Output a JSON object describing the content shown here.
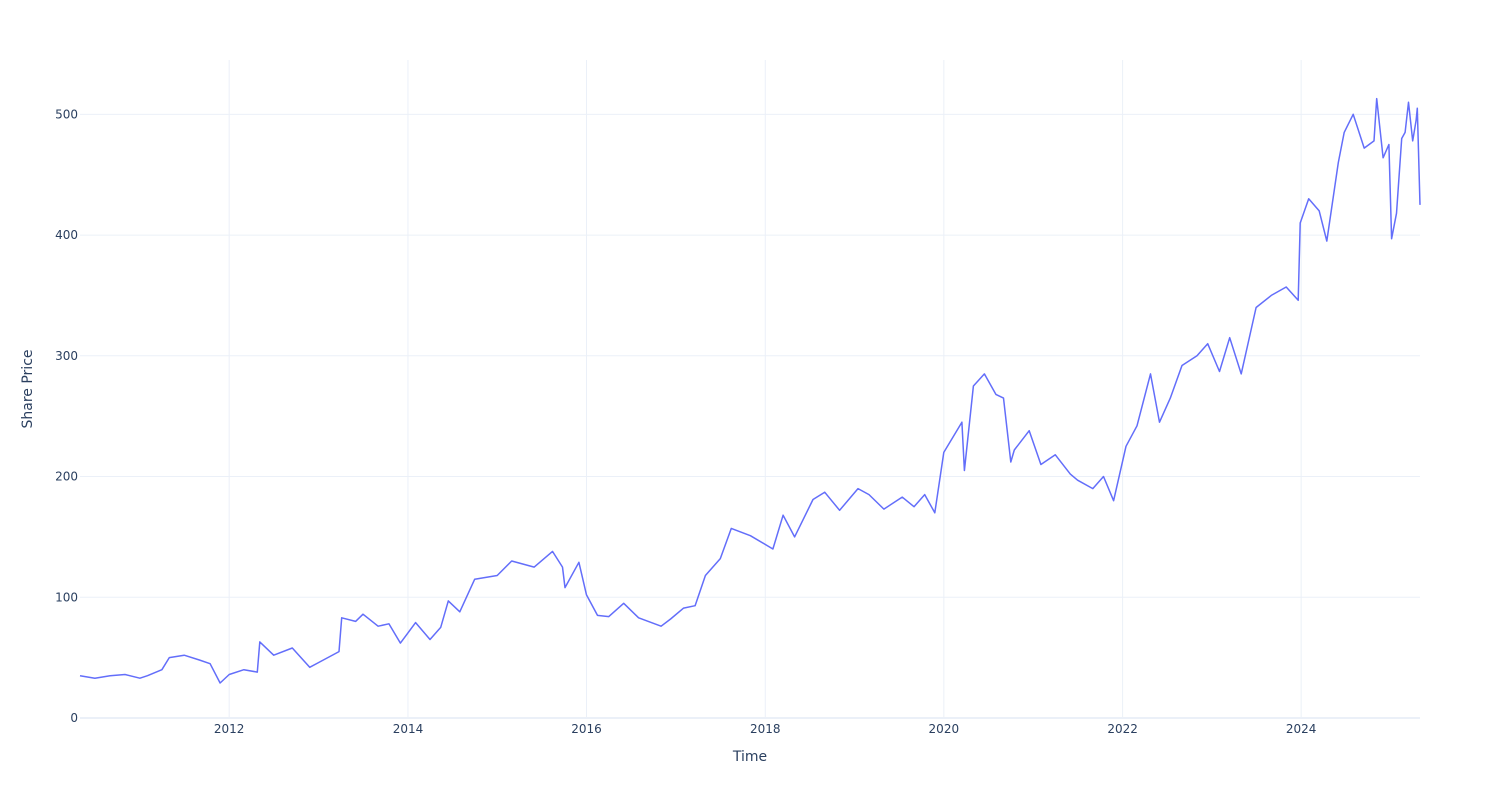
{
  "colors": {
    "line": "#636efa",
    "grid": "#ebf0f8",
    "text": "#2a3f5f",
    "background": "#ffffff"
  },
  "chart_data": {
    "type": "line",
    "title": "",
    "xlabel": "Time",
    "ylabel": "Share Price",
    "xlim": [
      "2010-05-01",
      "2025-05-01"
    ],
    "ylim": [
      0,
      545
    ],
    "grid": true,
    "x_ticks": [
      "2012",
      "2014",
      "2016",
      "2018",
      "2020",
      "2022",
      "2024"
    ],
    "y_ticks": [
      "0",
      "100",
      "200",
      "300",
      "400",
      "500"
    ],
    "series": [
      {
        "x": [
          "2010-05-01",
          "2010-07-01",
          "2010-09-01",
          "2010-11-01",
          "2011-01-01",
          "2011-02-01",
          "2011-04-01",
          "2011-05-01",
          "2011-07-01",
          "2011-09-01",
          "2011-10-15",
          "2011-11-25",
          "2012-01-01",
          "2012-03-01",
          "2012-04-25",
          "2012-05-05",
          "2012-07-01",
          "2012-09-15",
          "2012-11-25",
          "2013-01-01",
          "2013-03-25",
          "2013-04-05",
          "2013-06-01",
          "2013-07-01",
          "2013-09-01",
          "2013-10-15",
          "2013-12-01",
          "2014-02-01",
          "2014-04-01",
          "2014-05-15",
          "2014-06-15",
          "2014-08-01",
          "2014-10-01",
          "2015-01-01",
          "2015-03-01",
          "2015-06-01",
          "2015-08-15",
          "2015-09-25",
          "2015-10-05",
          "2015-12-01",
          "2016-01-01",
          "2016-02-15",
          "2016-04-01",
          "2016-06-01",
          "2016-08-01",
          "2016-11-01",
          "2016-12-10",
          "2017-02-01",
          "2017-03-20",
          "2017-05-01",
          "2017-07-01",
          "2017-08-15",
          "2017-11-01",
          "2018-02-01",
          "2018-03-15",
          "2018-05-01",
          "2018-07-15",
          "2018-09-01",
          "2018-11-01",
          "2019-01-15",
          "2019-03-01",
          "2019-05-01",
          "2019-07-15",
          "2019-09-01",
          "2019-10-15",
          "2019-11-25",
          "2020-01-01",
          "2020-03-15",
          "2020-03-25",
          "2020-05-01",
          "2020-06-15",
          "2020-08-01",
          "2020-09-01",
          "2020-10-01",
          "2020-10-15",
          "2020-12-15",
          "2021-02-01",
          "2021-04-01",
          "2021-06-01",
          "2021-07-01",
          "2021-09-01",
          "2021-10-15",
          "2021-11-25",
          "2022-01-15",
          "2022-03-01",
          "2022-04-25",
          "2022-06-01",
          "2022-07-15",
          "2022-09-01",
          "2022-11-01",
          "2022-12-15",
          "2023-02-01",
          "2023-03-15",
          "2023-05-01",
          "2023-07-01",
          "2023-09-01",
          "2023-11-01",
          "2023-12-20",
          "2023-12-28",
          "2024-02-01",
          "2024-03-15",
          "2024-04-15",
          "2024-06-01",
          "2024-06-25",
          "2024-08-01",
          "2024-09-15",
          "2024-10-25",
          "2024-11-05",
          "2024-12-01",
          "2024-12-25",
          "2025-01-05",
          "2025-01-25",
          "2025-02-15",
          "2025-03-01",
          "2025-03-15",
          "2025-04-01",
          "2025-04-15",
          "2025-04-20",
          "2025-05-01"
        ],
        "y": [
          35,
          33,
          35,
          36,
          33,
          35,
          40,
          50,
          52,
          48,
          45,
          29,
          36,
          40,
          38,
          63,
          52,
          58,
          42,
          46,
          55,
          83,
          80,
          86,
          76,
          78,
          62,
          79,
          65,
          75,
          97,
          88,
          115,
          118,
          130,
          125,
          138,
          125,
          108,
          129,
          102,
          85,
          84,
          95,
          83,
          76,
          82,
          91,
          93,
          118,
          132,
          157,
          151,
          140,
          168,
          150,
          181,
          187,
          172,
          190,
          185,
          173,
          183,
          175,
          185,
          170,
          220,
          245,
          205,
          275,
          285,
          268,
          265,
          212,
          222,
          238,
          210,
          218,
          202,
          197,
          190,
          200,
          180,
          225,
          242,
          285,
          245,
          265,
          292,
          300,
          310,
          287,
          315,
          285,
          340,
          350,
          357,
          346,
          410,
          430,
          420,
          395,
          460,
          485,
          500,
          472,
          478,
          513,
          464,
          475,
          397,
          418,
          480,
          485,
          510,
          478,
          495,
          505,
          425
        ]
      }
    ]
  }
}
